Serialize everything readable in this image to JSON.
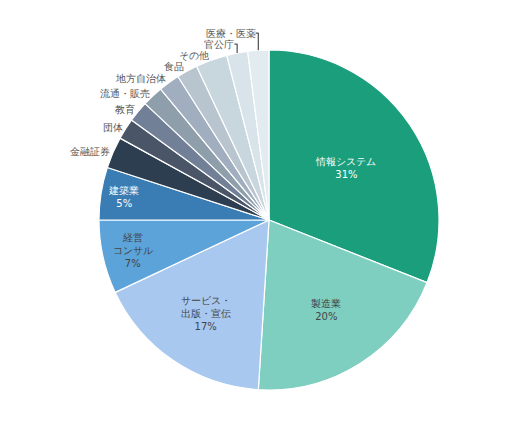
{
  "chart_data": {
    "type": "pie",
    "categories": [
      "情報システム",
      "製造業",
      "サービス・\n出版・宣伝",
      "経営\nコンサル",
      "建築業",
      "金融証券",
      "団体",
      "教育",
      "流通・販売",
      "地方自治体",
      "食品",
      "その他",
      "官公庁",
      "医療・医薬"
    ],
    "values": [
      31,
      20,
      17,
      7,
      5,
      3,
      2,
      2,
      2,
      2,
      2,
      3,
      2,
      2
    ],
    "value_labels": [
      "31%",
      "20%",
      "17%",
      "7%",
      "5%",
      null,
      null,
      null,
      null,
      null,
      null,
      null,
      null,
      null
    ],
    "colors": [
      "#1a9e7c",
      "#7ecfc0",
      "#a8c8f0",
      "#5ba3d9",
      "#3a7db5",
      "#2c3e50",
      "#4a5568",
      "#718096",
      "#8e9eab",
      "#a0aec0",
      "#b8c5ce",
      "#c8d6de",
      "#d8e3ea",
      "#e2ecf0"
    ]
  }
}
